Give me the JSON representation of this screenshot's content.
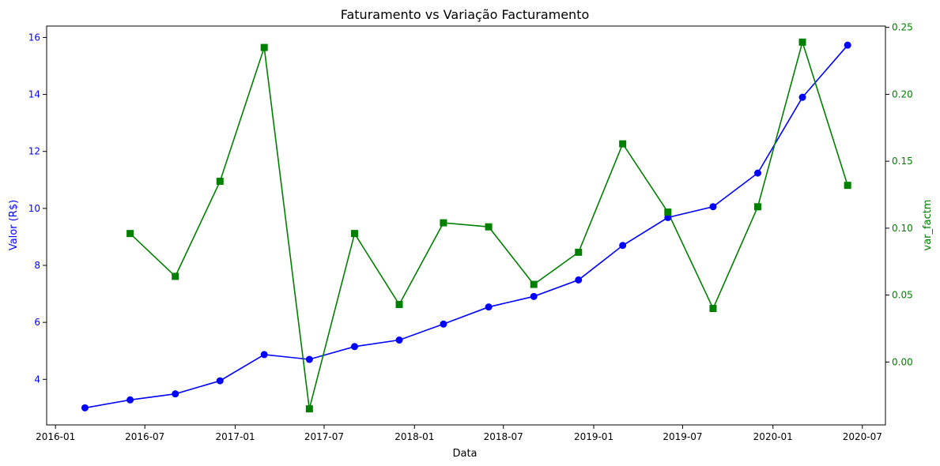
{
  "chart_data": {
    "type": "line",
    "title": "Faturamento vs Variação Facturamento",
    "xlabel": "Data",
    "ylabel_left": "Valor (R$)",
    "ylabel_right": "var_factm",
    "x_ticks": [
      "2016-01",
      "2016-07",
      "2017-01",
      "2017-07",
      "2018-01",
      "2018-07",
      "2019-01",
      "2019-07",
      "2020-01",
      "2020-07"
    ],
    "x_range": [
      "2015-12-14",
      "2020-08-17"
    ],
    "left_axis": {
      "range": [
        2.4,
        16.4
      ],
      "ticks": [
        4,
        6,
        8,
        10,
        12,
        14,
        16
      ],
      "color": "#0000ff"
    },
    "right_axis": {
      "range": [
        -0.047,
        0.251
      ],
      "ticks": [
        0.0,
        0.05,
        0.1,
        0.15,
        0.2,
        0.25
      ],
      "tick_labels": [
        "0.00",
        "0.05",
        "0.10",
        "0.15",
        "0.20",
        "0.25"
      ],
      "color": "#008000"
    },
    "grid": false,
    "series": [
      {
        "axis": "left",
        "color": "#0000ff",
        "marker": "circle",
        "x": [
          "2016-03-01",
          "2016-06-01",
          "2016-09-01",
          "2016-12-01",
          "2017-03-01",
          "2017-06-01",
          "2017-09-01",
          "2017-12-01",
          "2018-03-01",
          "2018-06-01",
          "2018-09-01",
          "2018-12-01",
          "2019-03-01",
          "2019-06-01",
          "2019-09-01",
          "2019-12-01",
          "2020-03-01",
          "2020-06-01"
        ],
        "values": [
          3.0,
          3.28,
          3.49,
          3.95,
          4.87,
          4.7,
          5.15,
          5.38,
          5.94,
          6.54,
          6.91,
          7.49,
          8.7,
          9.68,
          10.06,
          11.24,
          13.9,
          15.73
        ]
      },
      {
        "axis": "right",
        "color": "#008000",
        "marker": "square",
        "x": [
          "2016-06-01",
          "2016-09-01",
          "2016-12-01",
          "2017-03-01",
          "2017-06-01",
          "2017-09-01",
          "2017-12-01",
          "2018-03-01",
          "2018-06-01",
          "2018-09-01",
          "2018-12-01",
          "2019-03-01",
          "2019-06-01",
          "2019-09-01",
          "2019-12-01",
          "2020-03-01",
          "2020-06-01"
        ],
        "values": [
          0.096,
          0.064,
          0.135,
          0.235,
          -0.035,
          0.096,
          0.043,
          0.104,
          0.101,
          0.058,
          0.082,
          0.163,
          0.112,
          0.04,
          0.116,
          0.239,
          0.132
        ]
      }
    ]
  }
}
